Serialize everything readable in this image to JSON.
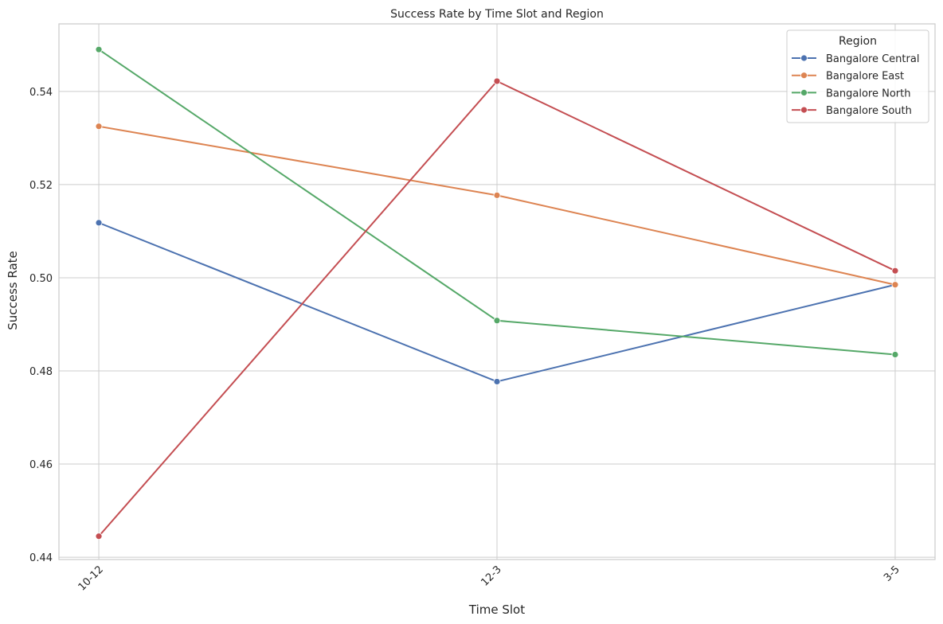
{
  "chart_data": {
    "type": "line",
    "title": "Success Rate by Time Slot and Region",
    "xlabel": "Time Slot",
    "ylabel": "Success Rate",
    "categories": [
      "10-12",
      "12-3",
      "3-5"
    ],
    "ylim": [
      0.4395,
      0.5545
    ],
    "yticks": [
      0.44,
      0.46,
      0.48,
      0.5,
      0.52,
      0.54
    ],
    "ytick_labels": [
      "0.44",
      "0.46",
      "0.48",
      "0.50",
      "0.52",
      "0.54"
    ],
    "grid": true,
    "legend": {
      "title": "Region",
      "position": "top-right"
    },
    "series": [
      {
        "name": "Bangalore Central",
        "color": "#4c72b0",
        "values": [
          0.5118,
          0.4777,
          0.4985
        ]
      },
      {
        "name": "Bangalore East",
        "color": "#dd8452",
        "values": [
          0.5325,
          0.5177,
          0.4985
        ]
      },
      {
        "name": "Bangalore North",
        "color": "#55a868",
        "values": [
          0.549,
          0.4908,
          0.4835
        ]
      },
      {
        "name": "Bangalore South",
        "color": "#c44e52",
        "values": [
          0.4445,
          0.5422,
          0.5015
        ]
      }
    ]
  }
}
